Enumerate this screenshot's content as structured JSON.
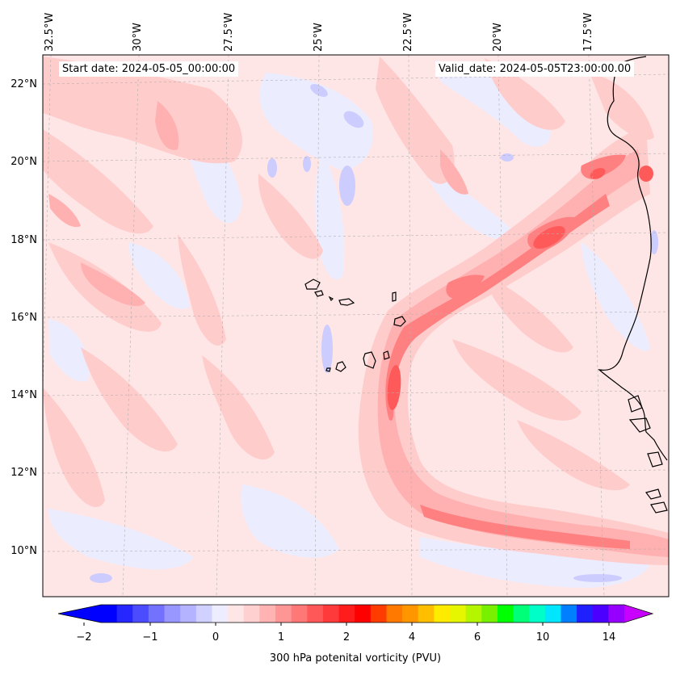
{
  "header": {
    "start_date": "Start date: 2024-05-05_00:00:00",
    "valid_date": "Valid_date: 2024-05-05T23:00:00.00"
  },
  "map": {
    "longitude_labels": [
      "32.5°W",
      "30°W",
      "27.5°W",
      "25°W",
      "22.5°W",
      "20°W",
      "17.5°W"
    ],
    "latitude_labels": [
      "22°N",
      "20°N",
      "18°N",
      "16°N",
      "14°N",
      "12°N",
      "10°N"
    ],
    "colors": {
      "very_light_pink": "#ffe6e6",
      "light_pink": "#ffcccc",
      "pink": "#ffb0b0",
      "salmon": "#ff8080",
      "red": "#ff5a5a",
      "lavender": "#e6e6ff",
      "light_blue": "#ccccff",
      "coastline": "#000000"
    }
  },
  "colorbar": {
    "tick_labels": [
      "−2",
      "−1",
      "0",
      "1",
      "2",
      "4",
      "6",
      "10",
      "14"
    ],
    "title": "300 hPa potenital vorticity (PVU)",
    "segment_colors": [
      "#0000ff",
      "#2626ff",
      "#4c4cff",
      "#7272ff",
      "#9797ff",
      "#b3b3ff",
      "#d1d1ff",
      "#ededff",
      "#ffe6e6",
      "#ffd0d0",
      "#ffb3b3",
      "#ff9696",
      "#ff7878",
      "#ff5858",
      "#ff3a3a",
      "#ff1c1c",
      "#ff0000",
      "#ff3c00",
      "#ff7800",
      "#ff9600",
      "#ffbe00",
      "#ffeb00",
      "#e6f500",
      "#b4f500",
      "#78f000",
      "#00ff00",
      "#00ff78",
      "#00ffc8",
      "#00e6ff",
      "#0080ff",
      "#2020ff",
      "#4b00ff",
      "#9600ff"
    ],
    "left_extend_color": "#0000ff",
    "right_extend_color": "#c800ff"
  }
}
